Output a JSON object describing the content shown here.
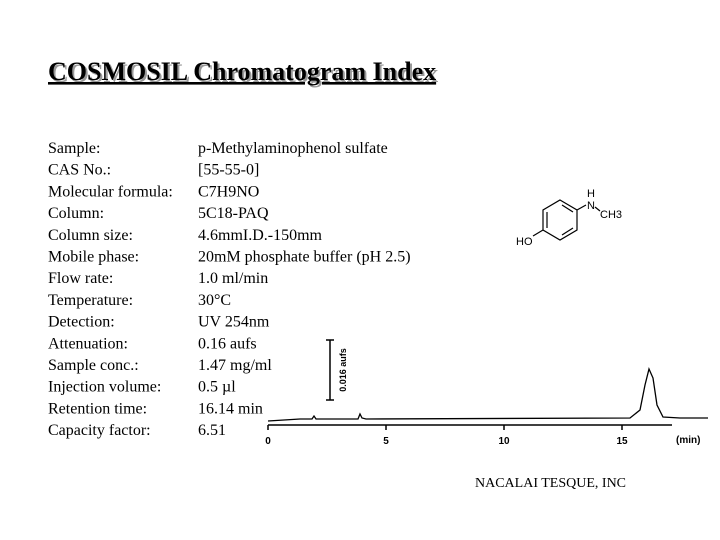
{
  "title": "COSMOSIL Chromatogram Index",
  "fields": [
    {
      "label": "Sample:",
      "value": "p-Methylaminophenol sulfate"
    },
    {
      "label": "CAS No.:",
      "value": "[55-55-0]"
    },
    {
      "label": "Molecular formula:",
      "value": "C7H9NO"
    },
    {
      "label": "Column:",
      "value": "5C18-PAQ"
    },
    {
      "label": "Column size:",
      "value": "4.6mmI.D.-150mm"
    },
    {
      "label": "Mobile phase:",
      "value": "20mM phosphate buffer (pH 2.5)"
    },
    {
      "label": "Flow rate:",
      "value": "1.0 ml/min"
    },
    {
      "label": "Temperature:",
      "value": "30°C"
    },
    {
      "label": "Detection:",
      "value": "UV 254nm"
    },
    {
      "label": "Attenuation:",
      "value": "0.16 aufs"
    },
    {
      "label": "Sample conc.:",
      "value": "1.47 mg/ml"
    },
    {
      "label": "Injection volume:",
      "value": "0.5 µl"
    },
    {
      "label": "Retention time:",
      "value": "16.14 min"
    },
    {
      "label": "Capacity factor:",
      "value": "6.51"
    }
  ],
  "structure": {
    "hydroxyl": "HO",
    "amine_h": "H",
    "amine_n": "N",
    "methyl": "CH3"
  },
  "chromatogram": {
    "xticks": [
      0,
      5,
      10,
      15
    ],
    "xlabel": "(min)",
    "scale_label": "0.016 aufs"
  },
  "footer": "NACALAI TESQUE, INC"
}
